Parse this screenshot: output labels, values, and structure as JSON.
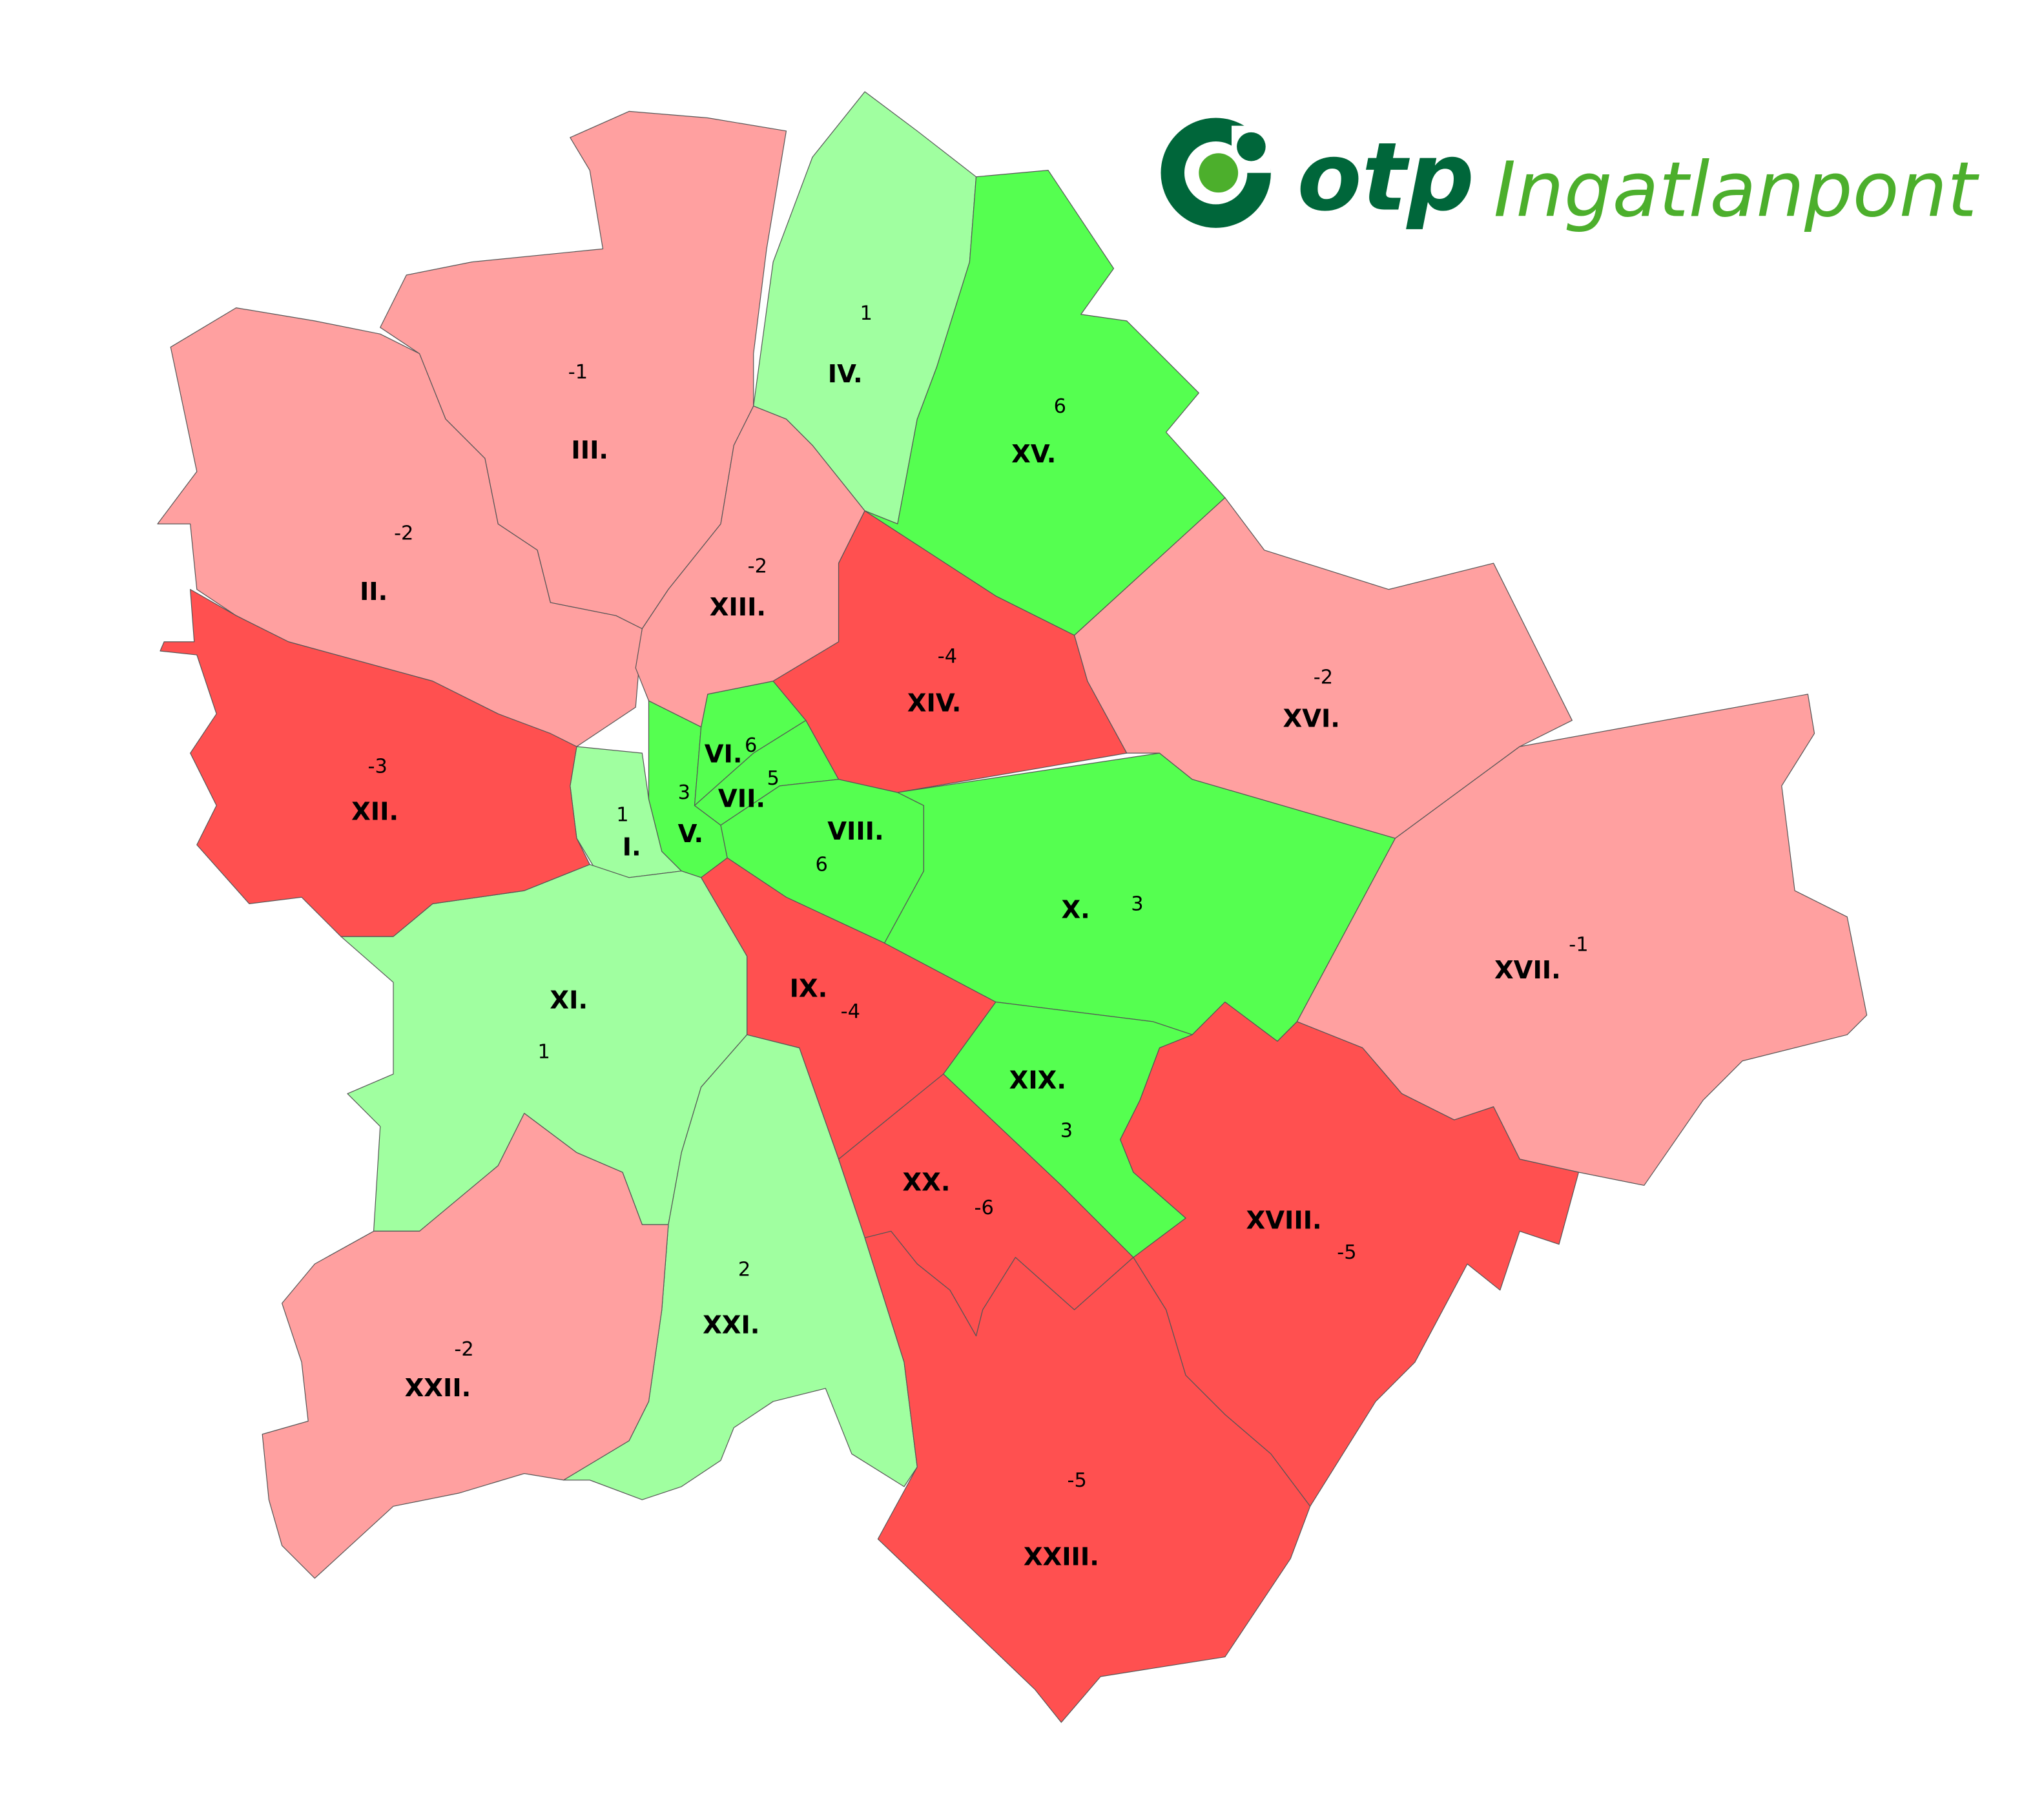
{
  "logo": {
    "brand": "otp",
    "product": "Ingatlanpont",
    "primary_color": "#00663a",
    "accent_color": "#4caf2c"
  },
  "color_scale": {
    "strong_positive": "#55ff50",
    "positive": "#a0ffa0",
    "negative": "#ffa0a0",
    "strong_negative": "#ff5050"
  },
  "districts": [
    {
      "name": "I.",
      "value": "1"
    },
    {
      "name": "II.",
      "value": "-2"
    },
    {
      "name": "III.",
      "value": "-1"
    },
    {
      "name": "IV.",
      "value": "1"
    },
    {
      "name": "V.",
      "value": "3"
    },
    {
      "name": "VI.",
      "value": "6"
    },
    {
      "name": "VII.",
      "value": "5"
    },
    {
      "name": "VIII.",
      "value": "6"
    },
    {
      "name": "IX.",
      "value": "-4"
    },
    {
      "name": "X.",
      "value": "3"
    },
    {
      "name": "XI.",
      "value": "1"
    },
    {
      "name": "XII.",
      "value": "-3"
    },
    {
      "name": "XIII.",
      "value": "-2"
    },
    {
      "name": "XIV.",
      "value": "-4"
    },
    {
      "name": "XV.",
      "value": "6"
    },
    {
      "name": "XVI.",
      "value": "-2"
    },
    {
      "name": "XVII.",
      "value": "-1"
    },
    {
      "name": "XVIII.",
      "value": "-5"
    },
    {
      "name": "XIX.",
      "value": "3"
    },
    {
      "name": "XX.",
      "value": "-6"
    },
    {
      "name": "XXI.",
      "value": "2"
    },
    {
      "name": "XXII.",
      "value": "-2"
    },
    {
      "name": "XXIII.",
      "value": "-5"
    }
  ]
}
